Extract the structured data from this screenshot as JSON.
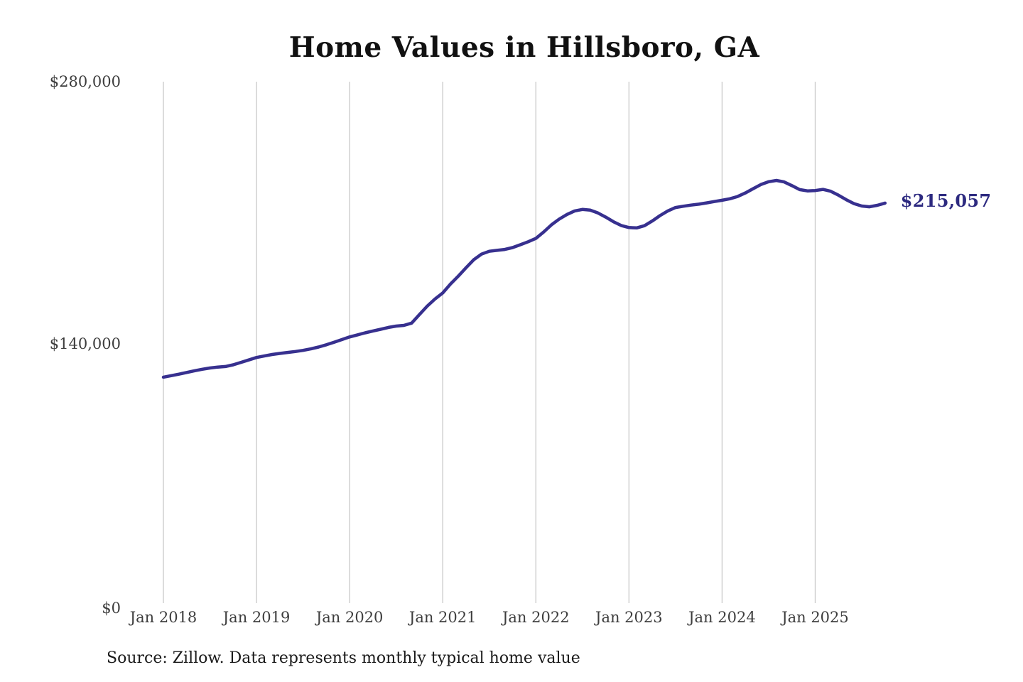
{
  "page": {
    "background_color": "#ffffff"
  },
  "chart_data": {
    "type": "line",
    "title": "Home Values in Hillsboro, GA",
    "subtitle": "",
    "xlabel": "",
    "ylabel": "",
    "source_note": "Source: Zillow. Data represents monthly typical home value",
    "legend": "none",
    "grid": "vertical-only",
    "ylim": [
      0,
      280000
    ],
    "y_ticks": [
      280000,
      140000,
      0
    ],
    "y_tick_labels": [
      "$280,000",
      "$140,000",
      "$0"
    ],
    "x_tick_labels": [
      "Jan 2018",
      "Jan 2019",
      "Jan 2020",
      "Jan 2021",
      "Jan 2022",
      "Jan 2023",
      "Jan 2024",
      "Jan 2025"
    ],
    "x_start_month": "2018-01",
    "x_end_month": "2025-10",
    "frequency": "monthly",
    "end_label": "$215,057",
    "end_value": 215057,
    "colors": {
      "line": "#37308f",
      "annotation": "#2d2a80",
      "grid": "#c9c9c9",
      "axis_text": "#3d3d3d",
      "title_text": "#111111",
      "source_text": "#1a1a1a"
    },
    "series": [
      {
        "name": "Monthly typical home value",
        "unit": "USD",
        "values": [
          122000,
          122800,
          123600,
          124500,
          125400,
          126200,
          126900,
          127400,
          127700,
          128600,
          129900,
          131200,
          132500,
          133300,
          134100,
          134700,
          135200,
          135700,
          136300,
          137100,
          138100,
          139300,
          140700,
          142100,
          143500,
          144600,
          145700,
          146700,
          147600,
          148600,
          149300,
          149700,
          150900,
          155500,
          160000,
          163800,
          167000,
          171800,
          176000,
          180500,
          184800,
          187800,
          189300,
          189800,
          190300,
          191300,
          192800,
          194400,
          196200,
          199600,
          203400,
          206500,
          209000,
          210900,
          211700,
          211300,
          209800,
          207600,
          205100,
          203100,
          202000,
          201800,
          203000,
          205500,
          208400,
          210900,
          212700,
          213400,
          214000,
          214500,
          215200,
          215900,
          216600,
          217400,
          218600,
          220500,
          222800,
          225000,
          226500,
          227200,
          226400,
          224400,
          222300,
          221600,
          221800,
          222400,
          221400,
          219300,
          216900,
          214800,
          213500,
          213100,
          213900,
          215057
        ]
      }
    ]
  }
}
